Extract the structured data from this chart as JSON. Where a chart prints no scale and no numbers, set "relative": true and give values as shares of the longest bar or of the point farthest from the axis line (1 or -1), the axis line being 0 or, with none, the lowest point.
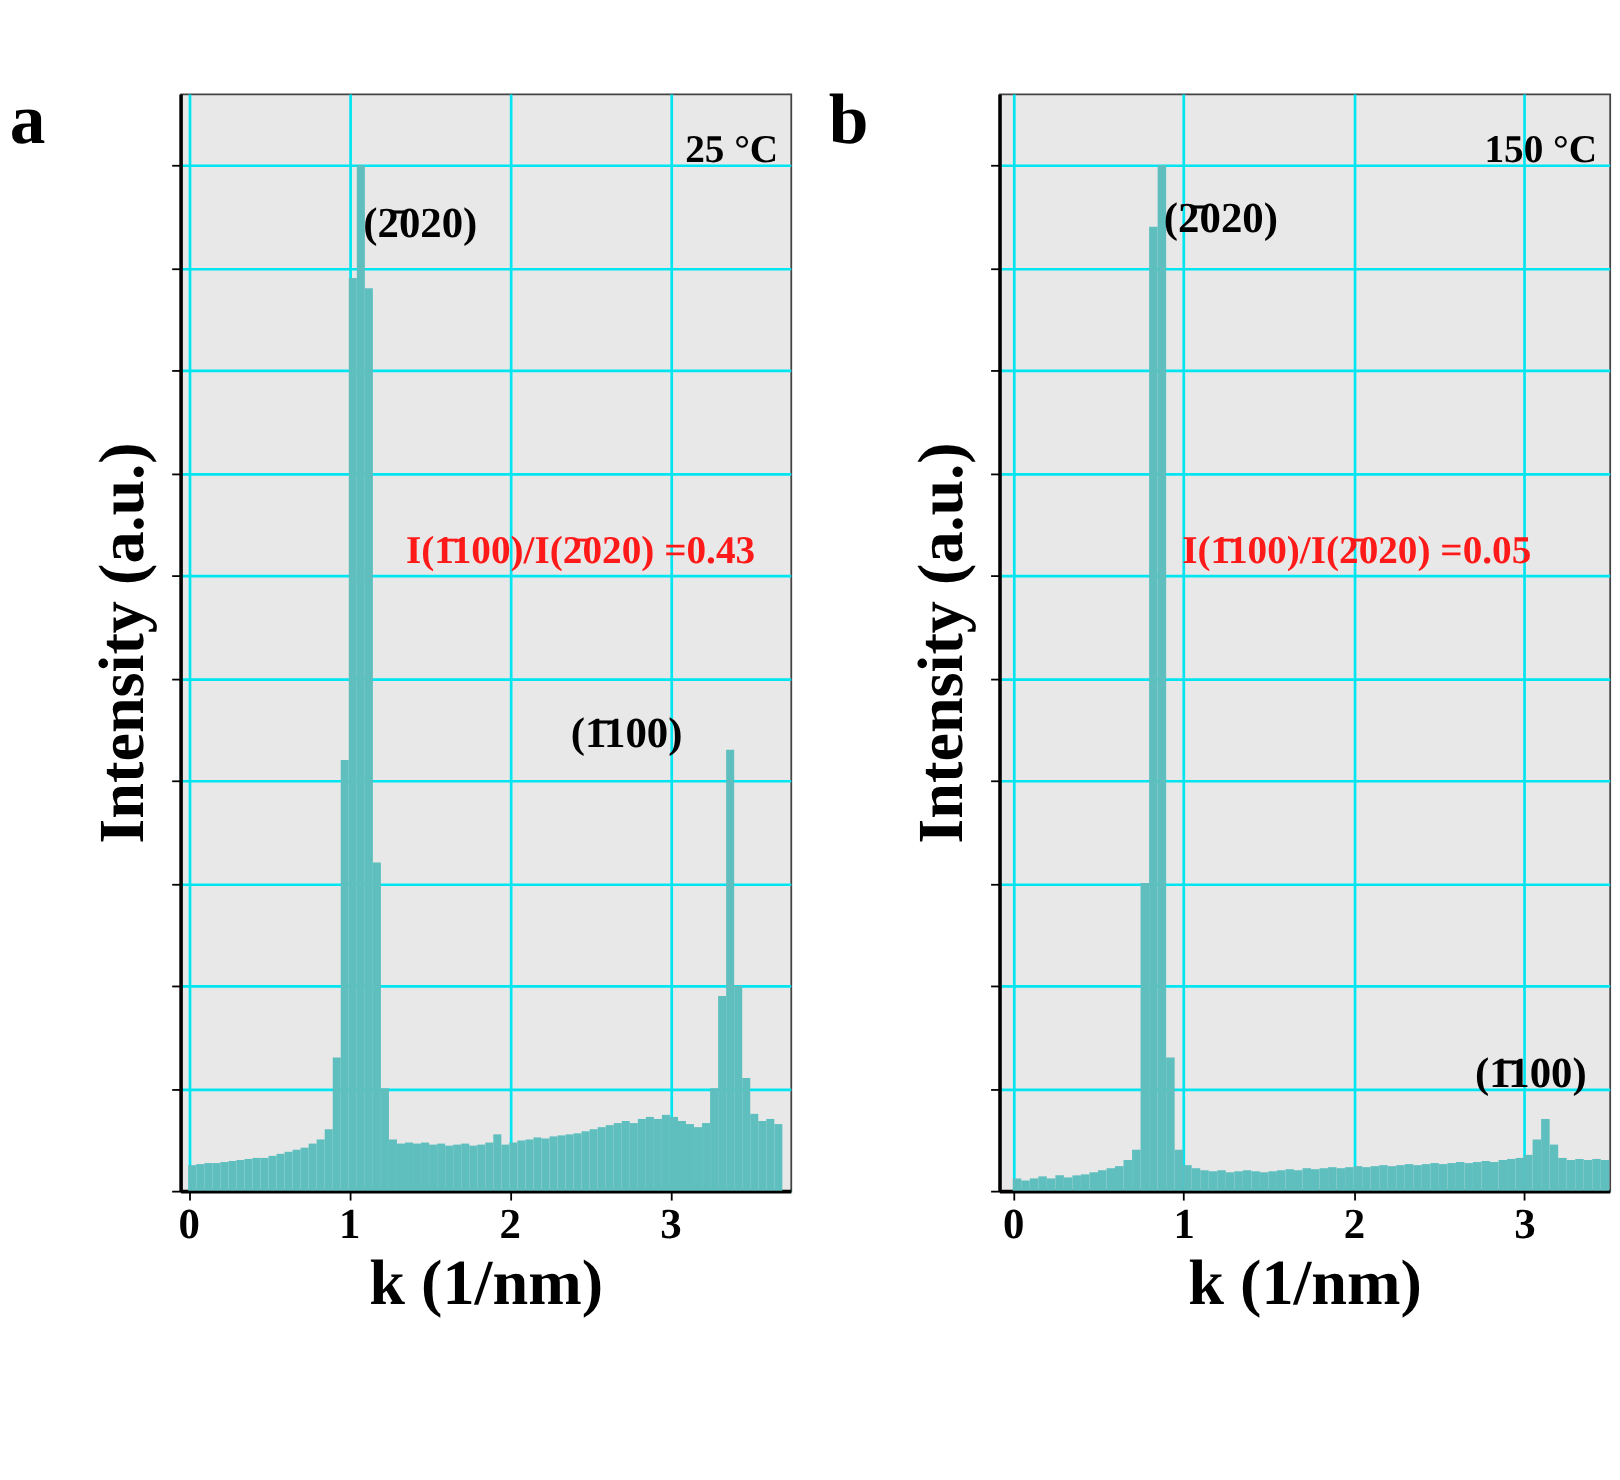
{
  "chart_data": [
    {
      "type": "bar",
      "title": "a",
      "xlabel": "k (1/nm)",
      "ylabel": "Intensity (a.u.)",
      "relative": true,
      "color": "#5fbfbf",
      "grid": true,
      "xlim": [
        -0.05,
        3.75
      ],
      "xticks": [
        0,
        1,
        2,
        3
      ],
      "x": [
        0.025,
        0.075,
        0.125,
        0.175,
        0.225,
        0.275,
        0.325,
        0.375,
        0.425,
        0.475,
        0.525,
        0.575,
        0.625,
        0.675,
        0.725,
        0.775,
        0.825,
        0.875,
        0.925,
        0.975,
        1.025,
        1.075,
        1.125,
        1.175,
        1.225,
        1.275,
        1.325,
        1.375,
        1.425,
        1.475,
        1.525,
        1.575,
        1.625,
        1.675,
        1.725,
        1.775,
        1.825,
        1.875,
        1.925,
        1.975,
        2.025,
        2.075,
        2.125,
        2.175,
        2.225,
        2.275,
        2.325,
        2.375,
        2.425,
        2.475,
        2.525,
        2.575,
        2.625,
        2.675,
        2.725,
        2.775,
        2.825,
        2.875,
        2.925,
        2.975,
        3.025,
        3.075,
        3.125,
        3.175,
        3.225,
        3.275,
        3.325,
        3.375,
        3.425,
        3.475,
        3.525,
        3.575,
        3.625,
        3.675
      ],
      "values": [
        0.025,
        0.026,
        0.027,
        0.027,
        0.028,
        0.029,
        0.03,
        0.031,
        0.032,
        0.032,
        0.034,
        0.036,
        0.038,
        0.04,
        0.042,
        0.046,
        0.05,
        0.06,
        0.13,
        0.42,
        0.89,
        1.0,
        0.88,
        0.32,
        0.1,
        0.05,
        0.046,
        0.047,
        0.046,
        0.047,
        0.045,
        0.046,
        0.044,
        0.045,
        0.046,
        0.044,
        0.045,
        0.047,
        0.055,
        0.045,
        0.047,
        0.049,
        0.05,
        0.052,
        0.051,
        0.053,
        0.054,
        0.055,
        0.056,
        0.058,
        0.06,
        0.062,
        0.064,
        0.066,
        0.068,
        0.066,
        0.07,
        0.072,
        0.07,
        0.074,
        0.072,
        0.068,
        0.065,
        0.062,
        0.066,
        0.1,
        0.19,
        0.43,
        0.2,
        0.11,
        0.075,
        0.068,
        0.07,
        0.065
      ],
      "annotations": [
        "25 °C",
        "(2̄020)",
        "(1̄100)",
        "I(1̄100)/I(2̄020) =0.43"
      ]
    },
    {
      "type": "bar",
      "title": "b",
      "xlabel": "k (1/nm)",
      "ylabel": "Intensity (a.u.)",
      "relative": true,
      "color": "#5fbfbf",
      "grid": true,
      "xlim": [
        -0.08,
        3.5
      ],
      "xticks": [
        0,
        1,
        2,
        3
      ],
      "x": [
        0.025,
        0.075,
        0.125,
        0.175,
        0.225,
        0.275,
        0.325,
        0.375,
        0.425,
        0.475,
        0.525,
        0.575,
        0.625,
        0.675,
        0.725,
        0.775,
        0.825,
        0.875,
        0.925,
        0.975,
        1.025,
        1.075,
        1.125,
        1.175,
        1.225,
        1.275,
        1.325,
        1.375,
        1.425,
        1.475,
        1.525,
        1.575,
        1.625,
        1.675,
        1.725,
        1.775,
        1.825,
        1.875,
        1.925,
        1.975,
        2.025,
        2.075,
        2.125,
        2.175,
        2.225,
        2.275,
        2.325,
        2.375,
        2.425,
        2.475,
        2.525,
        2.575,
        2.625,
        2.675,
        2.725,
        2.775,
        2.825,
        2.875,
        2.925,
        2.975,
        3.025,
        3.075,
        3.125,
        3.175,
        3.225,
        3.275,
        3.325,
        3.375,
        3.425,
        3.475
      ],
      "values": [
        0.012,
        0.01,
        0.012,
        0.014,
        0.012,
        0.015,
        0.013,
        0.015,
        0.016,
        0.018,
        0.02,
        0.022,
        0.024,
        0.03,
        0.04,
        0.3,
        0.94,
        1.0,
        0.13,
        0.04,
        0.025,
        0.022,
        0.02,
        0.019,
        0.02,
        0.018,
        0.019,
        0.02,
        0.019,
        0.018,
        0.019,
        0.02,
        0.021,
        0.02,
        0.022,
        0.021,
        0.022,
        0.023,
        0.022,
        0.023,
        0.024,
        0.023,
        0.024,
        0.025,
        0.024,
        0.025,
        0.026,
        0.025,
        0.026,
        0.027,
        0.026,
        0.027,
        0.028,
        0.027,
        0.028,
        0.029,
        0.028,
        0.03,
        0.031,
        0.032,
        0.035,
        0.05,
        0.07,
        0.045,
        0.032,
        0.03,
        0.031,
        0.03,
        0.031,
        0.03
      ],
      "annotations": [
        "150 °C",
        "(2̄020)",
        "(1̄100)",
        "I(1̄100)/I(2̄020) =0.05"
      ]
    }
  ]
}
